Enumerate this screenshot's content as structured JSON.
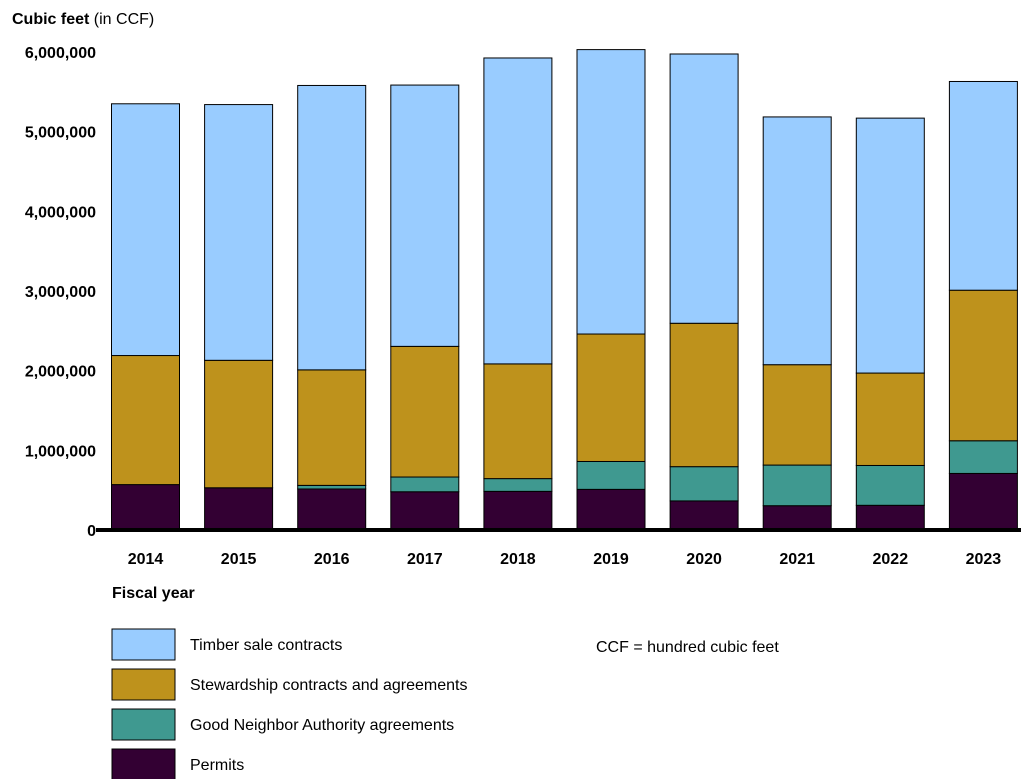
{
  "chart_data": {
    "type": "bar",
    "stacked": true,
    "ylabel_bold": "Cubic feet",
    "ylabel_rest": " (in CCF)",
    "xlabel": "Fiscal year",
    "note": "CCF = hundred cubic feet",
    "ylim": [
      0,
      6000000
    ],
    "yticks": [
      0,
      1000000,
      2000000,
      3000000,
      4000000,
      5000000,
      6000000
    ],
    "ytick_labels": [
      "0",
      "1,000,000",
      "2,000,000",
      "3,000,000",
      "4,000,000",
      "5,000,000",
      "6,000,000"
    ],
    "grid": false,
    "legend_position": "bottom-left",
    "categories": [
      "2014",
      "2015",
      "2016",
      "2017",
      "2018",
      "2019",
      "2020",
      "2021",
      "2022",
      "2023"
    ],
    "series": [
      {
        "name": "Permits",
        "color": "#330033",
        "values": [
          570000,
          530000,
          515000,
          480000,
          485000,
          510000,
          365000,
          305000,
          310000,
          710000
        ]
      },
      {
        "name": "Good Neighbor Authority agreements",
        "color": "#3f9990",
        "values": [
          0,
          0,
          45000,
          185000,
          160000,
          350000,
          430000,
          510000,
          500000,
          410000
        ]
      },
      {
        "name": "Stewardship contracts and agreements",
        "color": "#be921c",
        "values": [
          1620000,
          1600000,
          1450000,
          1640000,
          1440000,
          1600000,
          1800000,
          1260000,
          1160000,
          1890000
        ]
      },
      {
        "name": "Timber sale contracts",
        "color": "#99ccff",
        "values": [
          3160000,
          3210000,
          3570000,
          3280000,
          3840000,
          3570000,
          3380000,
          3110000,
          3200000,
          2620000
        ]
      }
    ],
    "legend_order": [
      3,
      2,
      1,
      0
    ]
  }
}
